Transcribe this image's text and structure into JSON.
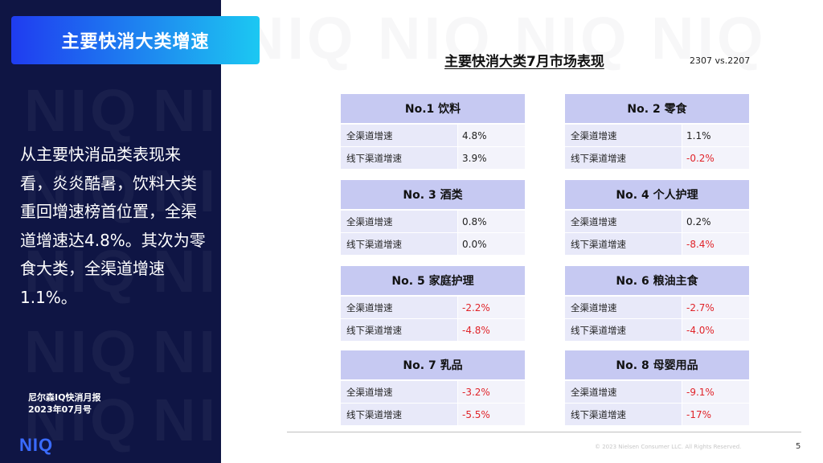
{
  "sidebar": {
    "title": "主要快消大类增速",
    "watermark": "NIQ",
    "description": "从主要快消品类表现来看，炎炎酷暑，饮料大类重回增速榜首位置，全渠道增速达4.8%。其次为零食大类，全渠道增速1.1%。",
    "report_line1": "尼尔森IQ快消月报",
    "report_line2": "2023年07月号",
    "logo": "NIQ"
  },
  "main": {
    "title": "主要快消大类7月市场表现",
    "period": "2307 vs.2207",
    "row_labels": [
      "全渠道增速",
      "线下渠道增速"
    ],
    "cards": [
      {
        "header": "No.1   饮料",
        "all": "4.8%",
        "offline": "3.9%"
      },
      {
        "header": "No. 2   零食",
        "all": "1.1%",
        "offline": "-0.2%"
      },
      {
        "header": "No. 3   酒类",
        "all": "0.8%",
        "offline": "0.0%"
      },
      {
        "header": "No. 4   个人护理",
        "all": "0.2%",
        "offline": "-8.4%"
      },
      {
        "header": "No. 5  家庭护理",
        "all": "-2.2%",
        "offline": "-4.8%"
      },
      {
        "header": "No. 6   粮油主食",
        "all": "-2.7%",
        "offline": "-4.0%"
      },
      {
        "header": "No. 7 乳品",
        "all": "-3.2%",
        "offline": "-5.5%"
      },
      {
        "header": "No. 8   母婴用品",
        "all": "-9.1%",
        "offline": "-17%"
      }
    ]
  },
  "footer": {
    "copyright": "© 2023 Nielsen Consumer LLC. All Rights Reserved.",
    "page_number": "5"
  },
  "colors": {
    "sidebar_bg": "#0f1544",
    "title_gradient_start": "#1f3cf0",
    "title_gradient_end": "#1cc8f2",
    "card_header_bg": "#c6c9f2",
    "negative": "#e0242a",
    "logo": "#3a6bff"
  }
}
